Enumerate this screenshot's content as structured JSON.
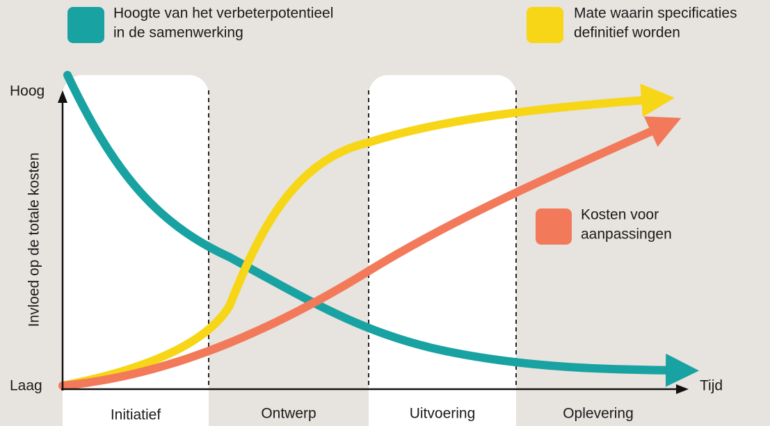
{
  "legend": [
    {
      "lines": [
        "Hoogte van het verbeterpotentieel",
        "in de samenwerking"
      ]
    },
    {
      "lines": [
        "Mate waarin specificaties",
        "definitief worden"
      ]
    },
    {
      "lines": [
        "Kosten voor",
        "aanpassingen"
      ]
    }
  ],
  "axes": {
    "y_label": "Invloed op de totale kosten",
    "y_high": "Hoog",
    "y_low": "Laag",
    "x_label": "Tijd"
  },
  "phases": [
    "Initiatief",
    "Ontwerp",
    "Uitvoering",
    "Oplevering"
  ]
}
